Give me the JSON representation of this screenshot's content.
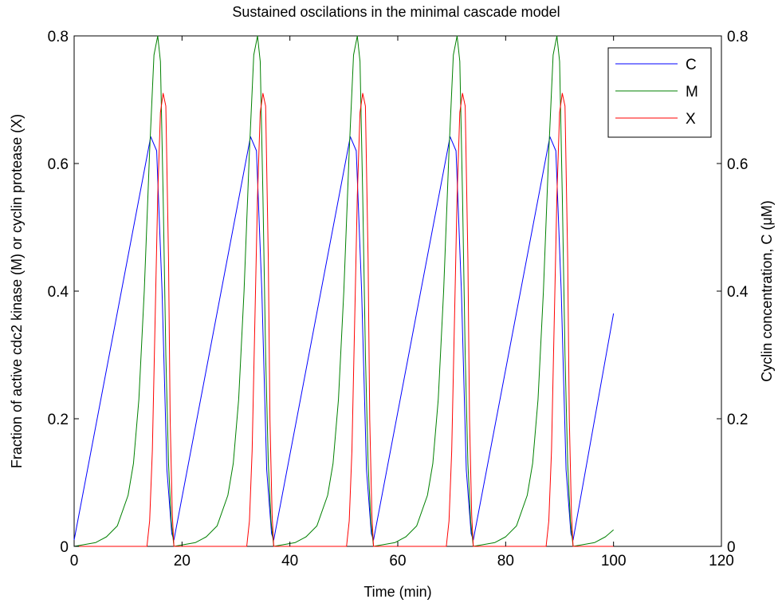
{
  "chart_data": {
    "type": "line",
    "title": "Sustained oscilations in the minimal cascade model",
    "xlabel": "Time (min)",
    "ylabel_left": "Fraction of active cdc2 kinase (M) or cyclin protease (X)",
    "ylabel_right": "Cyclin concentration, C (μM)",
    "xlim": [
      0,
      120
    ],
    "ylim_left": [
      0,
      0.8
    ],
    "ylim_right": [
      0,
      0.8
    ],
    "xticks": [
      "0",
      "20",
      "40",
      "60",
      "80",
      "100",
      "120"
    ],
    "yticks_left": [
      "0",
      "0.2",
      "0.4",
      "0.6",
      "0.8"
    ],
    "yticks_right": [
      "0",
      "0.2",
      "0.4",
      "0.6",
      "0.8"
    ],
    "grid": false,
    "legend_position": "top-right",
    "period": 18.5,
    "series": [
      {
        "name": "C",
        "color": "#0000ff",
        "points": [
          [
            0,
            0.01
          ],
          [
            14.2,
            0.642
          ],
          [
            15.3,
            0.62
          ],
          [
            16.3,
            0.4
          ],
          [
            17.2,
            0.12
          ],
          [
            18.1,
            0.02
          ],
          [
            18.5,
            0.01
          ],
          [
            32.7,
            0.642
          ],
          [
            33.8,
            0.62
          ],
          [
            34.8,
            0.4
          ],
          [
            35.7,
            0.12
          ],
          [
            36.6,
            0.02
          ],
          [
            37.0,
            0.01
          ],
          [
            51.2,
            0.642
          ],
          [
            52.3,
            0.62
          ],
          [
            53.3,
            0.4
          ],
          [
            54.2,
            0.12
          ],
          [
            55.1,
            0.02
          ],
          [
            55.5,
            0.01
          ],
          [
            69.7,
            0.642
          ],
          [
            70.8,
            0.62
          ],
          [
            71.8,
            0.4
          ],
          [
            72.7,
            0.12
          ],
          [
            73.6,
            0.02
          ],
          [
            74.0,
            0.01
          ],
          [
            88.2,
            0.642
          ],
          [
            89.3,
            0.62
          ],
          [
            90.3,
            0.4
          ],
          [
            91.2,
            0.12
          ],
          [
            92.1,
            0.02
          ],
          [
            92.5,
            0.01
          ],
          [
            100,
            0.365
          ]
        ]
      },
      {
        "name": "M",
        "color": "#008000",
        "points": [
          [
            0,
            0.0
          ],
          [
            2,
            0.003
          ],
          [
            4,
            0.006
          ],
          [
            6,
            0.015
          ],
          [
            8,
            0.032
          ],
          [
            10,
            0.08
          ],
          [
            11,
            0.13
          ],
          [
            12,
            0.23
          ],
          [
            13,
            0.4
          ],
          [
            14,
            0.62
          ],
          [
            14.8,
            0.77
          ],
          [
            15.5,
            0.8
          ],
          [
            16.0,
            0.76
          ],
          [
            16.5,
            0.55
          ],
          [
            17.0,
            0.3
          ],
          [
            17.5,
            0.13
          ],
          [
            18.0,
            0.04
          ],
          [
            18.5,
            0.0
          ],
          [
            20.5,
            0.003
          ],
          [
            22.5,
            0.006
          ],
          [
            24.5,
            0.015
          ],
          [
            26.5,
            0.032
          ],
          [
            28.5,
            0.08
          ],
          [
            29.5,
            0.13
          ],
          [
            30.5,
            0.23
          ],
          [
            31.5,
            0.4
          ],
          [
            32.5,
            0.62
          ],
          [
            33.3,
            0.77
          ],
          [
            34.0,
            0.8
          ],
          [
            34.5,
            0.76
          ],
          [
            35.0,
            0.55
          ],
          [
            35.5,
            0.3
          ],
          [
            36.0,
            0.13
          ],
          [
            36.5,
            0.04
          ],
          [
            37.0,
            0.0
          ],
          [
            39.0,
            0.003
          ],
          [
            41.0,
            0.006
          ],
          [
            43.0,
            0.015
          ],
          [
            45.0,
            0.032
          ],
          [
            47.0,
            0.08
          ],
          [
            48.0,
            0.13
          ],
          [
            49.0,
            0.23
          ],
          [
            50.0,
            0.4
          ],
          [
            51.0,
            0.62
          ],
          [
            51.8,
            0.77
          ],
          [
            52.5,
            0.8
          ],
          [
            53.0,
            0.76
          ],
          [
            53.5,
            0.55
          ],
          [
            54.0,
            0.3
          ],
          [
            54.5,
            0.13
          ],
          [
            55.0,
            0.04
          ],
          [
            55.5,
            0.0
          ],
          [
            57.5,
            0.003
          ],
          [
            59.5,
            0.006
          ],
          [
            61.5,
            0.015
          ],
          [
            63.5,
            0.032
          ],
          [
            65.5,
            0.08
          ],
          [
            66.5,
            0.13
          ],
          [
            67.5,
            0.23
          ],
          [
            68.5,
            0.4
          ],
          [
            69.5,
            0.62
          ],
          [
            70.3,
            0.77
          ],
          [
            71.0,
            0.8
          ],
          [
            71.5,
            0.76
          ],
          [
            72.0,
            0.55
          ],
          [
            72.5,
            0.3
          ],
          [
            73.0,
            0.13
          ],
          [
            73.5,
            0.04
          ],
          [
            74.0,
            0.0
          ],
          [
            76.0,
            0.003
          ],
          [
            78.0,
            0.006
          ],
          [
            80.0,
            0.015
          ],
          [
            82.0,
            0.032
          ],
          [
            84.0,
            0.08
          ],
          [
            85.0,
            0.13
          ],
          [
            86.0,
            0.23
          ],
          [
            87.0,
            0.4
          ],
          [
            88.0,
            0.62
          ],
          [
            88.8,
            0.77
          ],
          [
            89.5,
            0.8
          ],
          [
            90.0,
            0.76
          ],
          [
            90.5,
            0.55
          ],
          [
            91.0,
            0.3
          ],
          [
            91.5,
            0.13
          ],
          [
            92.0,
            0.04
          ],
          [
            92.5,
            0.0
          ],
          [
            94.5,
            0.003
          ],
          [
            96.5,
            0.006
          ],
          [
            98.5,
            0.015
          ],
          [
            100,
            0.026
          ]
        ]
      },
      {
        "name": "X",
        "color": "#ff0000",
        "points": [
          [
            0,
            0.0
          ],
          [
            13.5,
            0.0
          ],
          [
            14.0,
            0.04
          ],
          [
            14.5,
            0.15
          ],
          [
            15.0,
            0.35
          ],
          [
            15.5,
            0.55
          ],
          [
            16.0,
            0.68
          ],
          [
            16.5,
            0.71
          ],
          [
            17.0,
            0.69
          ],
          [
            17.5,
            0.45
          ],
          [
            17.8,
            0.2
          ],
          [
            18.2,
            0.05
          ],
          [
            18.5,
            0.0
          ],
          [
            32.0,
            0.0
          ],
          [
            32.5,
            0.04
          ],
          [
            33.0,
            0.15
          ],
          [
            33.5,
            0.35
          ],
          [
            34.0,
            0.55
          ],
          [
            34.5,
            0.68
          ],
          [
            35.0,
            0.71
          ],
          [
            35.5,
            0.69
          ],
          [
            36.0,
            0.45
          ],
          [
            36.3,
            0.2
          ],
          [
            36.7,
            0.05
          ],
          [
            37.0,
            0.0
          ],
          [
            50.5,
            0.0
          ],
          [
            51.0,
            0.04
          ],
          [
            51.5,
            0.15
          ],
          [
            52.0,
            0.35
          ],
          [
            52.5,
            0.55
          ],
          [
            53.0,
            0.68
          ],
          [
            53.5,
            0.71
          ],
          [
            54.0,
            0.69
          ],
          [
            54.5,
            0.45
          ],
          [
            54.8,
            0.2
          ],
          [
            55.2,
            0.05
          ],
          [
            55.5,
            0.0
          ],
          [
            69.0,
            0.0
          ],
          [
            69.5,
            0.04
          ],
          [
            70.0,
            0.15
          ],
          [
            70.5,
            0.35
          ],
          [
            71.0,
            0.55
          ],
          [
            71.5,
            0.68
          ],
          [
            72.0,
            0.71
          ],
          [
            72.5,
            0.69
          ],
          [
            73.0,
            0.45
          ],
          [
            73.3,
            0.2
          ],
          [
            73.7,
            0.05
          ],
          [
            74.0,
            0.0
          ],
          [
            87.5,
            0.0
          ],
          [
            88.0,
            0.04
          ],
          [
            88.5,
            0.15
          ],
          [
            89.0,
            0.35
          ],
          [
            89.5,
            0.55
          ],
          [
            90.0,
            0.68
          ],
          [
            90.5,
            0.71
          ],
          [
            91.0,
            0.69
          ],
          [
            91.5,
            0.45
          ],
          [
            91.8,
            0.2
          ],
          [
            92.2,
            0.05
          ],
          [
            92.5,
            0.0
          ],
          [
            100,
            0.0
          ]
        ]
      }
    ]
  }
}
